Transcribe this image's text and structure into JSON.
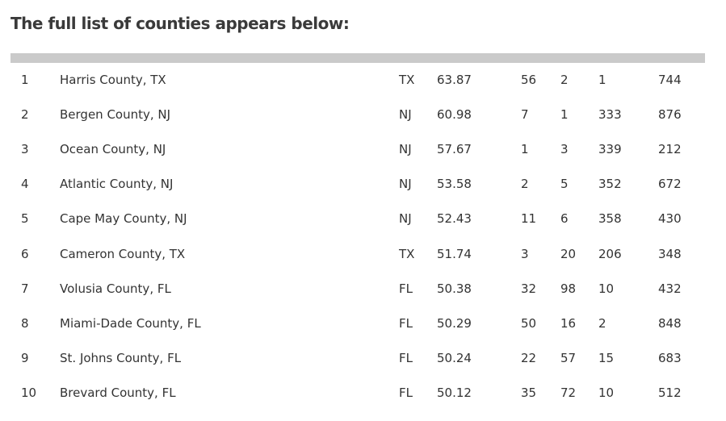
{
  "heading": "The full list of counties appears below:",
  "rows": [
    [
      "1",
      "Harris County, TX",
      "TX",
      "63.87",
      "56",
      "2",
      "1",
      "744"
    ],
    [
      "2",
      "Bergen County, NJ",
      "NJ",
      "60.98",
      "7",
      "1",
      "333",
      "876"
    ],
    [
      "3",
      "Ocean County, NJ",
      "NJ",
      "57.67",
      "1",
      "3",
      "339",
      "212"
    ],
    [
      "4",
      "Atlantic County, NJ",
      "NJ",
      "53.58",
      "2",
      "5",
      "352",
      "672"
    ],
    [
      "5",
      "Cape May County, NJ",
      "NJ",
      "52.43",
      "11",
      "6",
      "358",
      "430"
    ],
    [
      "6",
      "Cameron County, TX",
      "TX",
      "51.74",
      "3",
      "20",
      "206",
      "348"
    ],
    [
      "7",
      "Volusia County, FL",
      "FL",
      "50.38",
      "32",
      "98",
      "10",
      "432"
    ],
    [
      "8",
      "Miami-Dade County, FL",
      "FL",
      "50.29",
      "50",
      "16",
      "2",
      "848"
    ],
    [
      "9",
      "St. Johns County, FL",
      "FL",
      "50.24",
      "22",
      "57",
      "15",
      "683"
    ],
    [
      "10",
      "Brevard County, FL",
      "FL",
      "50.12",
      "35",
      "72",
      "10",
      "512"
    ]
  ]
}
